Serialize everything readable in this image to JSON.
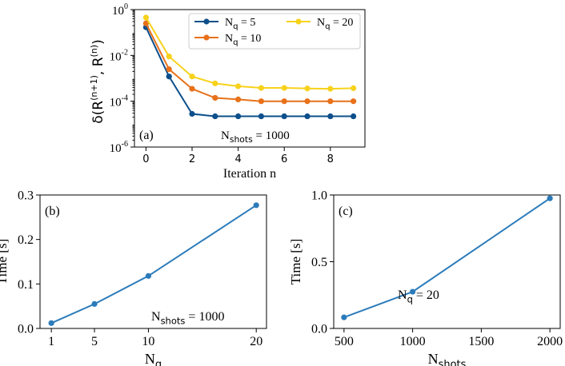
{
  "chart_data": [
    {
      "panel": "(a)",
      "type": "line",
      "yscale": "log",
      "xlabel": "Iteration n",
      "ylabel": "δ(R",
      "ylabel_sup1": "(n+1)",
      "ylabel_mid": ", R",
      "ylabel_sup2": "(n)",
      "ylabel_end": ")",
      "xlim": [
        -0.5,
        9.5
      ],
      "ylim": [
        1e-06,
        1
      ],
      "xticks": [
        0,
        2,
        4,
        6,
        8
      ],
      "yticks": [
        {
          "value": 1.0,
          "base": "10",
          "exp": "0"
        },
        {
          "value": 0.01,
          "base": "10",
          "exp": "-2"
        },
        {
          "value": 0.0001,
          "base": "10",
          "exp": "-4"
        },
        {
          "value": 1e-06,
          "base": "10",
          "exp": "-6"
        }
      ],
      "annotation": {
        "prefix": "N",
        "sub": "shots",
        "suffix": " = 1000"
      },
      "legend_position": "top-right",
      "x": [
        0,
        1,
        2,
        3,
        4,
        5,
        6,
        7,
        8,
        9
      ],
      "series": [
        {
          "name": "Nq = 5",
          "label_base": "N",
          "label_sub": "q",
          "label_rest": " = 5",
          "color": "#0d4f8b",
          "values": [
            0.17,
            0.0012,
            2.8e-05,
            2.2e-05,
            2.2e-05,
            2.2e-05,
            2.2e-05,
            2.2e-05,
            2.2e-05,
            2.2e-05
          ]
        },
        {
          "name": "Nq = 10",
          "label_base": "N",
          "label_sub": "q",
          "label_rest": " = 10",
          "color": "#e8711a",
          "values": [
            0.25,
            0.0025,
            0.00035,
            0.00014,
            0.00012,
            0.0001,
            0.0001,
            0.0001,
            0.0001,
            0.0001
          ]
        },
        {
          "name": "Nq = 20",
          "label_base": "N",
          "label_sub": "q",
          "label_rest": " = 20",
          "color": "#f7d21c",
          "values": [
            0.45,
            0.009,
            0.0012,
            0.0006,
            0.00045,
            0.00038,
            0.00038,
            0.00036,
            0.00035,
            0.00037
          ]
        }
      ]
    },
    {
      "panel": "(b)",
      "type": "line",
      "xlabel_base": "N",
      "xlabel_sub": "q",
      "ylabel": "Time [s]",
      "xlim": [
        -0.05,
        20.95
      ],
      "ylim": [
        0,
        0.3
      ],
      "xticks": [
        1,
        5,
        10,
        20
      ],
      "yticks": [
        0.0,
        0.1,
        0.2,
        0.3
      ],
      "ytick_labels": [
        "0.0",
        "0.1",
        "0.2",
        "0.3"
      ],
      "annotation": {
        "prefix": "N",
        "sub": "shots",
        "suffix": " = 1000"
      },
      "color": "#2b7bba",
      "x": [
        1,
        5,
        10,
        20
      ],
      "values": [
        0.012,
        0.055,
        0.118,
        0.277
      ]
    },
    {
      "panel": "(c)",
      "type": "line",
      "xlabel_base": "N",
      "xlabel_sub": "shots",
      "ylabel": "Time [s]",
      "xlim": [
        425,
        2075
      ],
      "ylim": [
        0,
        1.0
      ],
      "xticks": [
        500,
        1000,
        1500,
        2000
      ],
      "yticks": [
        0.0,
        0.5,
        1.0
      ],
      "ytick_labels": [
        "0.0",
        "0.5",
        "1.0"
      ],
      "annotation": {
        "prefix": "N",
        "sub": "q",
        "suffix": " = 20"
      },
      "color": "#2b7bba",
      "x": [
        500,
        1000,
        2000
      ],
      "values": [
        0.083,
        0.275,
        0.975
      ]
    }
  ]
}
